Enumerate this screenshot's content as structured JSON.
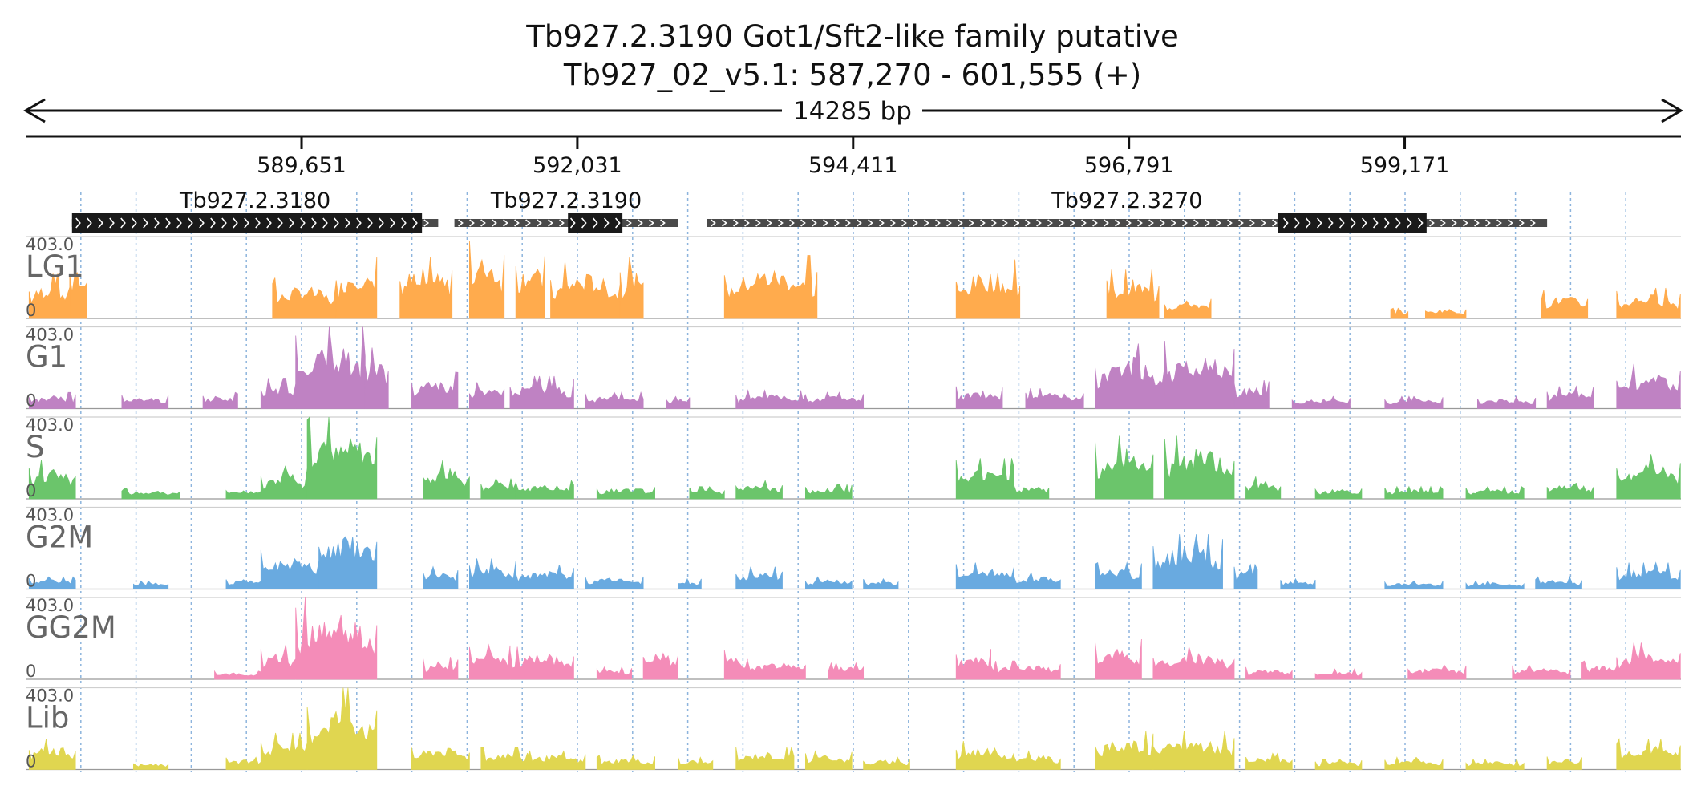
{
  "header": {
    "title_line1": "Tb927.2.3190  Got1/Sft2-like family  putative",
    "title_line2": "Tb927_02_v5.1: 587,270 - 601,555 (+)",
    "span_label": "14285 bp"
  },
  "colors": {
    "axis": "#111111",
    "grid": "#7aa7d8",
    "utr": "#4a4a4a",
    "cds": "#1a1a1a"
  },
  "region": {
    "chrom": "Tb927_02_v5.1",
    "start": 587270,
    "end": 601555,
    "strand": "+"
  },
  "chart_data": {
    "type": "area",
    "x_ticks": [
      {
        "pos": 589651,
        "label": "589,651"
      },
      {
        "pos": 592031,
        "label": "592,031"
      },
      {
        "pos": 594411,
        "label": "594,411"
      },
      {
        "pos": 596791,
        "label": "596,791"
      },
      {
        "pos": 599171,
        "label": "599,171"
      }
    ],
    "genes": [
      {
        "name": "Tb927.2.3180",
        "start": 587670,
        "end": 590830,
        "cds": [
          587670,
          590690
        ]
      },
      {
        "name": "Tb927.2.3190",
        "start": 590970,
        "end": 592900,
        "cds": [
          591950,
          592420
        ]
      },
      {
        "name": "Tb927.2.3270",
        "start": 593150,
        "end": 600400,
        "cds": [
          598080,
          599360
        ]
      }
    ],
    "tracks": [
      {
        "name": "LG1",
        "color": "#ffab4d",
        "ymax_label": "403.0",
        "ymin_label": "0",
        "ymax": 403,
        "peaks": [
          [
            587300,
            587650,
            220
          ],
          [
            587650,
            587800,
            300
          ],
          [
            589400,
            589950,
            200
          ],
          [
            589950,
            590300,
            320
          ],
          [
            590500,
            590700,
            290
          ],
          [
            590700,
            590950,
            300
          ],
          [
            591100,
            591400,
            390
          ],
          [
            591500,
            591750,
            350
          ],
          [
            591800,
            592400,
            280
          ],
          [
            592400,
            592600,
            300
          ],
          [
            593300,
            594100,
            310
          ],
          [
            595300,
            595850,
            290
          ],
          [
            596600,
            597050,
            240
          ],
          [
            597100,
            597500,
            110
          ],
          [
            599050,
            599200,
            50
          ],
          [
            599350,
            599700,
            60
          ],
          [
            600350,
            600750,
            140
          ],
          [
            601000,
            601550,
            150
          ]
        ]
      },
      {
        "name": "G1",
        "color": "#bf82c3",
        "ymax_label": "403.0",
        "ymin_label": "0",
        "ymax": 403,
        "peaks": [
          [
            587300,
            587700,
            80
          ],
          [
            588100,
            588500,
            70
          ],
          [
            588800,
            589100,
            80
          ],
          [
            589300,
            589600,
            150
          ],
          [
            589600,
            590200,
            403
          ],
          [
            590200,
            590400,
            300
          ],
          [
            590600,
            591000,
            180
          ],
          [
            591100,
            591400,
            130
          ],
          [
            591450,
            592000,
            160
          ],
          [
            592100,
            592600,
            80
          ],
          [
            592800,
            593000,
            60
          ],
          [
            593400,
            594000,
            90
          ],
          [
            594000,
            594500,
            80
          ],
          [
            595300,
            595700,
            110
          ],
          [
            595900,
            596400,
            100
          ],
          [
            596500,
            597100,
            320
          ],
          [
            597100,
            597700,
            360
          ],
          [
            597700,
            598000,
            140
          ],
          [
            598200,
            598700,
            60
          ],
          [
            599000,
            599500,
            60
          ],
          [
            599800,
            600300,
            60
          ],
          [
            600400,
            600800,
            110
          ],
          [
            601000,
            601550,
            220
          ]
        ]
      },
      {
        "name": "S",
        "color": "#6bc56b",
        "ymax_label": "403.0",
        "ymin_label": "0",
        "ymax": 403,
        "peaks": [
          [
            587300,
            587700,
            190
          ],
          [
            588100,
            588600,
            50
          ],
          [
            589000,
            589300,
            60
          ],
          [
            589300,
            589700,
            160
          ],
          [
            589700,
            590300,
            403
          ],
          [
            590700,
            591100,
            190
          ],
          [
            591200,
            591500,
            100
          ],
          [
            591500,
            592000,
            90
          ],
          [
            592200,
            592700,
            70
          ],
          [
            593000,
            593300,
            60
          ],
          [
            593400,
            593800,
            90
          ],
          [
            594000,
            594400,
            70
          ],
          [
            595300,
            595800,
            200
          ],
          [
            595800,
            596100,
            80
          ],
          [
            596500,
            597000,
            310
          ],
          [
            597100,
            597700,
            310
          ],
          [
            597800,
            598100,
            110
          ],
          [
            598400,
            598800,
            60
          ],
          [
            599000,
            599500,
            60
          ],
          [
            599700,
            600200,
            60
          ],
          [
            600400,
            600800,
            100
          ],
          [
            601000,
            601550,
            220
          ]
        ]
      },
      {
        "name": "G2M",
        "color": "#69aae0",
        "ymax_label": "403.0",
        "ymin_label": "0",
        "ymax": 403,
        "peaks": [
          [
            587300,
            587700,
            60
          ],
          [
            588200,
            588500,
            40
          ],
          [
            589000,
            589300,
            60
          ],
          [
            589300,
            589800,
            200
          ],
          [
            589800,
            590300,
            340
          ],
          [
            590700,
            591000,
            110
          ],
          [
            591100,
            591500,
            150
          ],
          [
            591500,
            592000,
            120
          ],
          [
            592100,
            592600,
            70
          ],
          [
            592900,
            593100,
            50
          ],
          [
            593400,
            593800,
            110
          ],
          [
            594000,
            594400,
            60
          ],
          [
            594500,
            594800,
            50
          ],
          [
            595300,
            595800,
            130
          ],
          [
            595800,
            596200,
            80
          ],
          [
            596500,
            596900,
            130
          ],
          [
            597000,
            597600,
            270
          ],
          [
            597700,
            597900,
            120
          ],
          [
            598100,
            598400,
            50
          ],
          [
            599000,
            599500,
            40
          ],
          [
            599700,
            600200,
            40
          ],
          [
            600300,
            600700,
            60
          ],
          [
            601000,
            601550,
            130
          ]
        ]
      },
      {
        "name": "GG2M",
        "color": "#f48cb8",
        "ymax_label": "403.0",
        "ymin_label": "0",
        "ymax": 403,
        "peaks": [
          [
            588900,
            589300,
            40
          ],
          [
            589300,
            589600,
            170
          ],
          [
            589600,
            590300,
            403
          ],
          [
            590700,
            591000,
            110
          ],
          [
            591100,
            591450,
            170
          ],
          [
            591450,
            592000,
            160
          ],
          [
            592200,
            592500,
            60
          ],
          [
            592600,
            592900,
            170
          ],
          [
            593300,
            593500,
            150
          ],
          [
            593500,
            594000,
            110
          ],
          [
            594200,
            594500,
            80
          ],
          [
            595300,
            595600,
            160
          ],
          [
            595600,
            596200,
            90
          ],
          [
            596500,
            596900,
            200
          ],
          [
            597000,
            597700,
            160
          ],
          [
            597800,
            598200,
            60
          ],
          [
            598400,
            598800,
            50
          ],
          [
            599200,
            599700,
            70
          ],
          [
            600100,
            600600,
            70
          ],
          [
            600700,
            601000,
            90
          ],
          [
            601000,
            601550,
            180
          ]
        ]
      },
      {
        "name": "Lib",
        "color": "#e0d650",
        "ymax_label": "403.0",
        "ymin_label": "0",
        "ymax": 403,
        "peaks": [
          [
            587300,
            587700,
            150
          ],
          [
            588200,
            588500,
            40
          ],
          [
            589000,
            589300,
            60
          ],
          [
            589300,
            589700,
            180
          ],
          [
            589700,
            590300,
            403
          ],
          [
            590600,
            591100,
            140
          ],
          [
            591200,
            591600,
            110
          ],
          [
            591600,
            592100,
            90
          ],
          [
            592200,
            592700,
            70
          ],
          [
            592900,
            593200,
            60
          ],
          [
            593400,
            593900,
            110
          ],
          [
            594000,
            594400,
            90
          ],
          [
            594500,
            594900,
            60
          ],
          [
            595300,
            595800,
            140
          ],
          [
            595800,
            596200,
            90
          ],
          [
            596500,
            597000,
            190
          ],
          [
            597000,
            597700,
            190
          ],
          [
            597800,
            598200,
            80
          ],
          [
            598400,
            598800,
            50
          ],
          [
            599000,
            599500,
            60
          ],
          [
            599700,
            600200,
            50
          ],
          [
            600400,
            600700,
            70
          ],
          [
            601000,
            601550,
            150
          ]
        ]
      }
    ]
  }
}
